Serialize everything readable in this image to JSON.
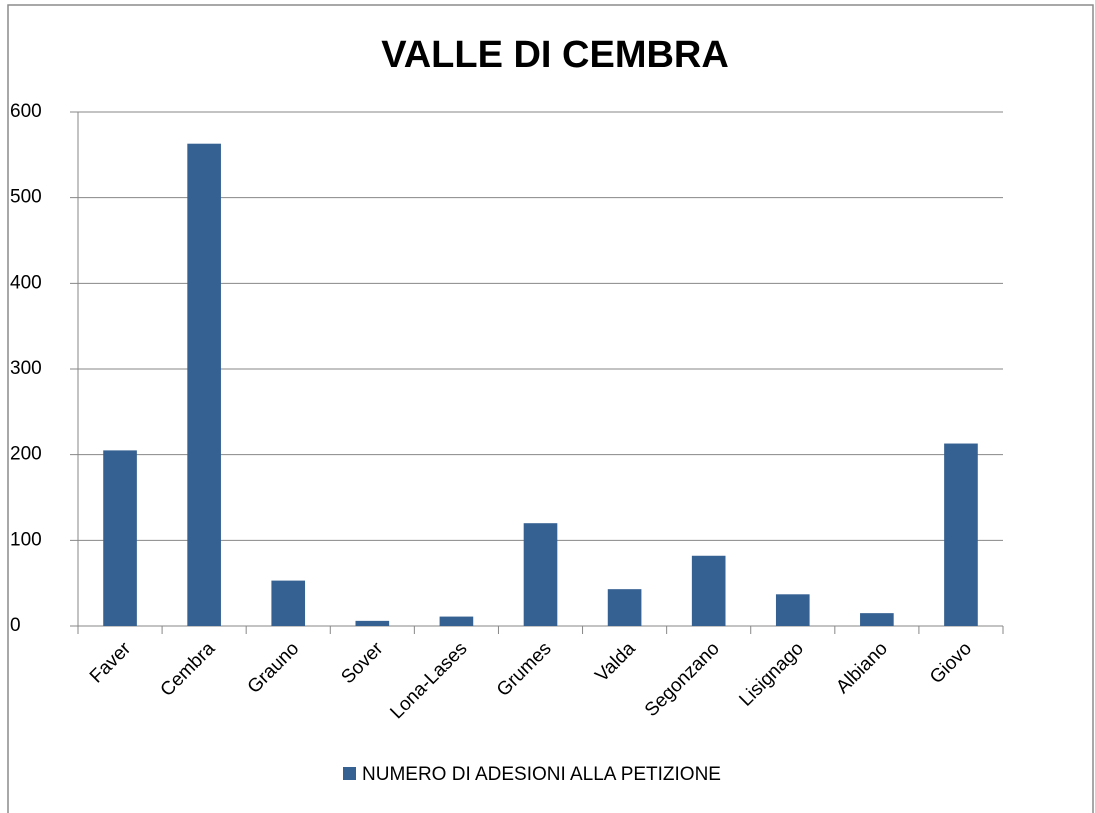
{
  "chart_data": {
    "type": "bar",
    "title": "VALLE DI CEMBRA",
    "categories": [
      "Faver",
      "Cembra",
      "Grauno",
      "Sover",
      "Lona-Lases",
      "Grumes",
      "Valda",
      "Segonzano",
      "Lisignago",
      "Albiano",
      "Giovo"
    ],
    "series": [
      {
        "name": "NUMERO DI ADESIONI ALLA PETIZIONE",
        "color": "#356192",
        "values": [
          205,
          563,
          53,
          6,
          11,
          120,
          43,
          82,
          37,
          15,
          213
        ]
      }
    ],
    "ylim": [
      0,
      600
    ],
    "yticks": [
      0,
      100,
      200,
      300,
      400,
      500,
      600
    ],
    "grid": true,
    "legend": "bottom"
  }
}
